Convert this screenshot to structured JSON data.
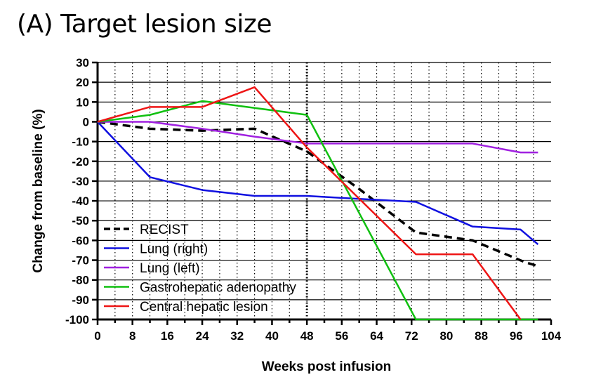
{
  "chart_data": {
    "type": "line",
    "title": "(A) Target lesion size",
    "xlabel": "Weeks post infusion",
    "ylabel": "Change from baseline (%)",
    "xlim": [
      0,
      104
    ],
    "ylim": [
      -100,
      30
    ],
    "xticks": [
      0,
      8,
      16,
      24,
      32,
      40,
      48,
      56,
      64,
      72,
      80,
      88,
      96,
      104
    ],
    "yticks": [
      30,
      20,
      10,
      0,
      -10,
      -20,
      -30,
      -40,
      -50,
      -60,
      -70,
      -80,
      -90,
      -100
    ],
    "grid": "dotted vertical gridlines every 4 weeks, solid horizontal gridlines every 10%",
    "reference_line_x": 48,
    "legend_position": "bottom-left",
    "series": [
      {
        "name": "RECIST",
        "color": "#000000",
        "style": "dashed",
        "x": [
          0,
          12,
          24,
          36,
          48,
          60,
          73,
          86,
          98,
          101
        ],
        "y": [
          0,
          -3.5,
          -4.5,
          -3.5,
          -15,
          -34,
          -56,
          -60,
          -71,
          -73
        ]
      },
      {
        "name": "Lung (right)",
        "color": "#1010e0",
        "style": "solid",
        "x": [
          0,
          12,
          24,
          36,
          48,
          60,
          73,
          86,
          97,
          101
        ],
        "y": [
          0,
          -28,
          -34.5,
          -37.5,
          -37.5,
          -39,
          -40.5,
          -53,
          -54.5,
          -62
        ]
      },
      {
        "name": "Lung (left)",
        "color": "#a020e0",
        "style": "solid",
        "x": [
          0,
          12,
          24,
          36,
          48,
          60,
          73,
          86,
          97,
          101
        ],
        "y": [
          0,
          0,
          -3.5,
          -7.5,
          -11,
          -11,
          -11,
          -11,
          -15.5,
          -15.5
        ]
      },
      {
        "name": "Gastrohepatic adenopathy",
        "color": "#10c010",
        "style": "solid",
        "x": [
          0,
          12,
          24,
          36,
          48,
          73,
          86,
          97,
          101
        ],
        "y": [
          0,
          3.5,
          10.5,
          7,
          3.5,
          -100,
          -100,
          -100,
          -100
        ]
      },
      {
        "name": "Central hepatic lesion",
        "color": "#ee1515",
        "style": "solid",
        "x": [
          0,
          12,
          24,
          36,
          48,
          73,
          86,
          97
        ],
        "y": [
          0,
          7.5,
          7.5,
          17.5,
          -13,
          -67,
          -67,
          -100
        ]
      }
    ]
  }
}
